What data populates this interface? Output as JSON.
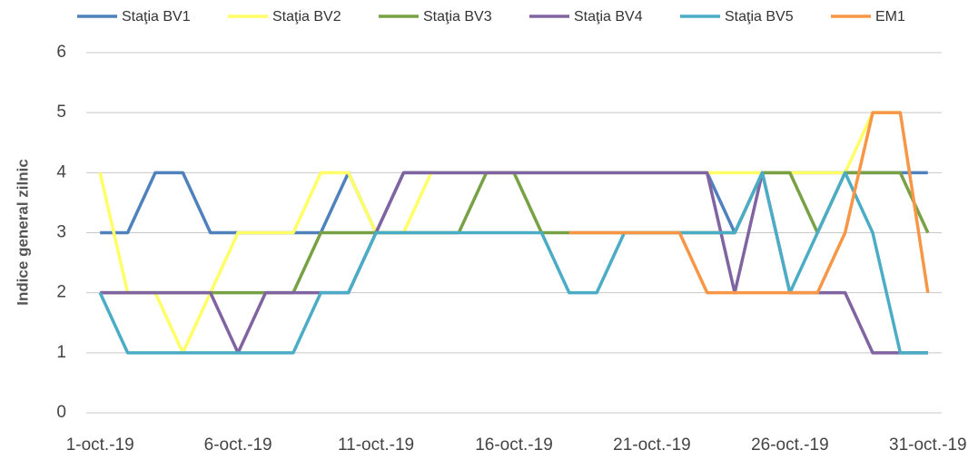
{
  "chart_data": {
    "type": "line",
    "y_label": "Indice general zilnic",
    "categories": [
      "1-oct.-19",
      null,
      null,
      null,
      null,
      "6-oct.-19",
      null,
      null,
      null,
      null,
      "11-oct.-19",
      null,
      null,
      null,
      null,
      "16-oct.-19",
      null,
      null,
      null,
      null,
      "21-oct.-19",
      null,
      null,
      null,
      null,
      "26-oct.-19",
      null,
      null,
      null,
      null,
      "31-oct.-19"
    ],
    "series": [
      {
        "name": "Staţia BV1",
        "color": "#4f81bd",
        "values": [
          3,
          3,
          4,
          4,
          3,
          3,
          3,
          3,
          3,
          4,
          3,
          4,
          4,
          4,
          4,
          4,
          4,
          4,
          4,
          4,
          4,
          4,
          4,
          3,
          4,
          4,
          4,
          4,
          4,
          4,
          4
        ]
      },
      {
        "name": "Staţia BV2",
        "color": "#ffff66",
        "values": [
          4,
          2,
          2,
          1,
          2,
          3,
          3,
          3,
          4,
          4,
          3,
          3,
          4,
          4,
          4,
          4,
          4,
          4,
          4,
          4,
          4,
          4,
          4,
          4,
          4,
          4,
          4,
          4,
          5,
          5,
          null
        ]
      },
      {
        "name": "Staţia BV3",
        "color": "#77a144",
        "values": [
          2,
          2,
          2,
          2,
          2,
          2,
          2,
          2,
          3,
          3,
          3,
          3,
          3,
          3,
          4,
          4,
          3,
          3,
          3,
          3,
          3,
          3,
          3,
          3,
          4,
          4,
          3,
          4,
          4,
          4,
          3
        ]
      },
      {
        "name": "Staţia BV4",
        "color": "#8064a2",
        "values": [
          2,
          2,
          2,
          2,
          2,
          1,
          2,
          2,
          2,
          2,
          3,
          4,
          4,
          4,
          4,
          4,
          4,
          4,
          4,
          4,
          4,
          4,
          4,
          2,
          4,
          2,
          2,
          2,
          1,
          1,
          1
        ]
      },
      {
        "name": "Staţia BV5",
        "color": "#4bacc6",
        "values": [
          2,
          1,
          1,
          1,
          1,
          1,
          1,
          1,
          2,
          2,
          3,
          3,
          3,
          3,
          3,
          3,
          3,
          2,
          2,
          3,
          3,
          3,
          3,
          3,
          4,
          2,
          3,
          4,
          3,
          1,
          1
        ]
      },
      {
        "name": "EM1",
        "color": "#f79646",
        "values": [
          null,
          null,
          null,
          null,
          null,
          null,
          null,
          null,
          null,
          null,
          null,
          null,
          null,
          null,
          null,
          null,
          null,
          3,
          3,
          3,
          3,
          3,
          2,
          2,
          2,
          2,
          2,
          3,
          5,
          5,
          2
        ]
      }
    ],
    "ylim": [
      0,
      6
    ],
    "yticks": [
      0,
      1,
      2,
      3,
      4,
      5,
      6
    ],
    "grid": true
  }
}
